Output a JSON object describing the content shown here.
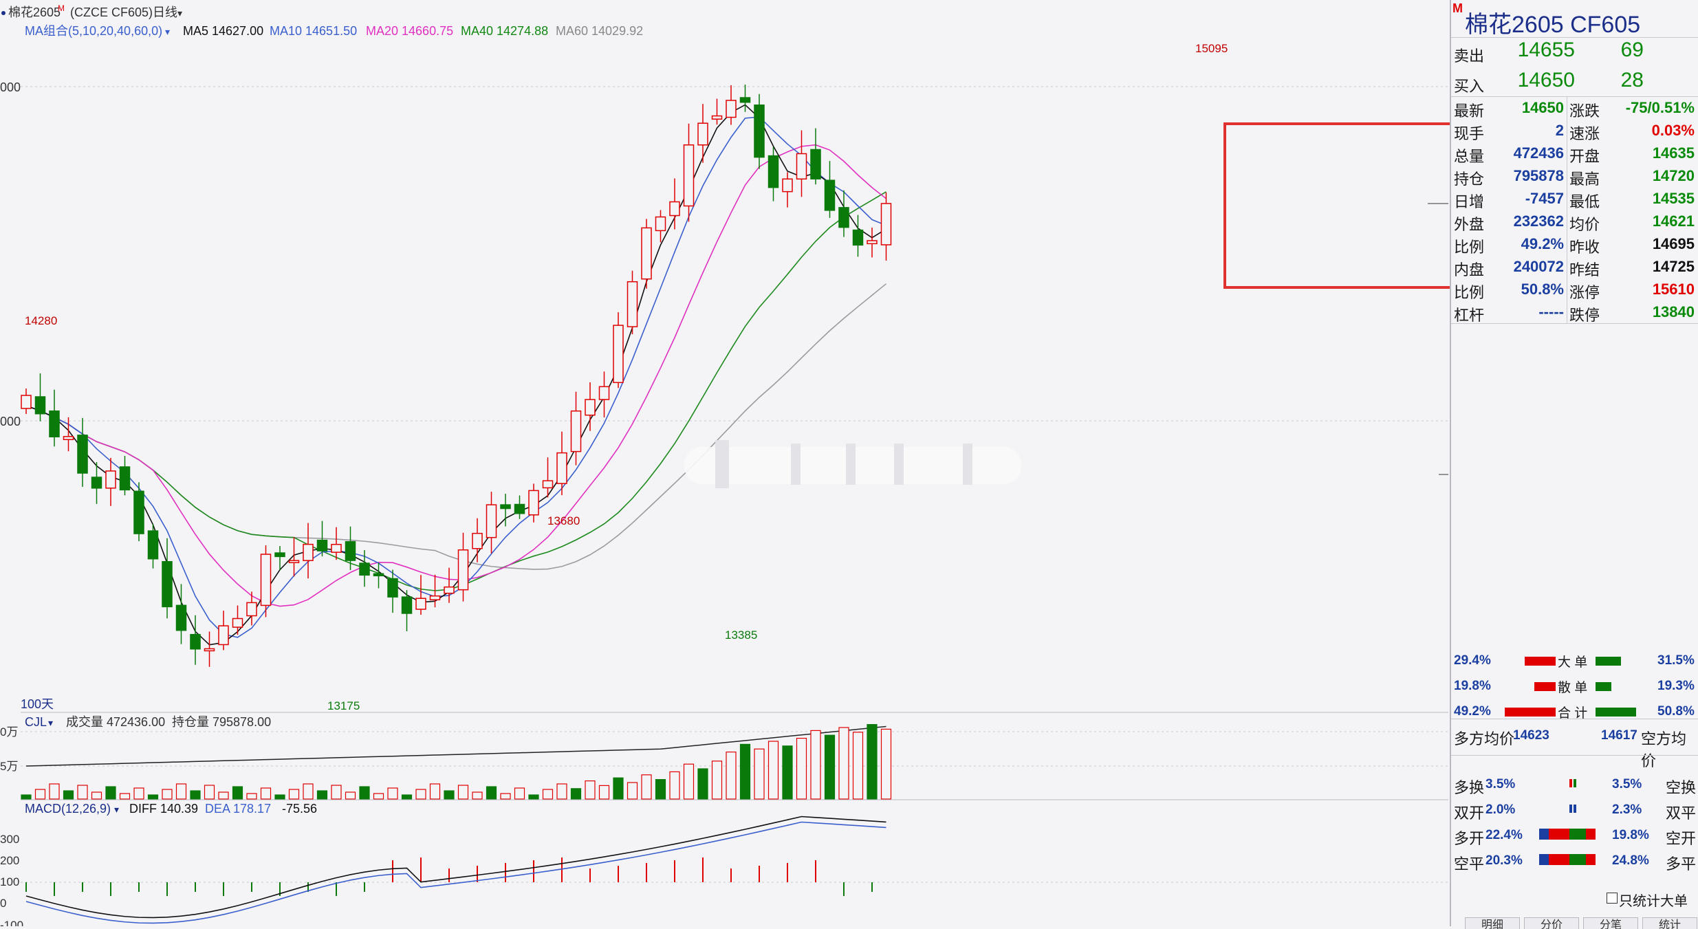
{
  "header": {
    "contract": "棉花2605",
    "contract_sup": "M",
    "exchange_code": "(CZCE CF605)",
    "period": "日线"
  },
  "ma_legend": {
    "group": "MA组合(5,10,20,40,60,0)",
    "items": [
      {
        "label": "MA5 14627.00",
        "color": "#111111"
      },
      {
        "label": "MA10 14651.50",
        "color": "#3a5fcd"
      },
      {
        "label": "MA20 14660.75",
        "color": "#e030c0"
      },
      {
        "label": "MA40 14274.88",
        "color": "#118811"
      },
      {
        "label": "MA60 14029.92",
        "color": "#888888"
      }
    ]
  },
  "price_axis_labels": [
    "000",
    "000"
  ],
  "annotations": {
    "high": "15095",
    "left_high": "14280",
    "mid_high": "13680",
    "mid_low": "13385",
    "low": "13175",
    "days": "100天"
  },
  "volume_panel": {
    "name": "CJL",
    "vol_label": "成交量 472436.00",
    "oi_label": "持仓量 795878.00",
    "axis": [
      "0万",
      "5万"
    ]
  },
  "macd_panel": {
    "name": "MACD(12,26,9)",
    "diff": "DIFF 140.39",
    "dea": "DEA 178.17",
    "macd": "-75.56",
    "axis": [
      "300",
      "200",
      "100",
      "0",
      "-100"
    ]
  },
  "quote": {
    "title_sup": "M",
    "title": "棉花2605  CF605",
    "ask_label": "卖出",
    "ask_price": "14655",
    "ask_vol": "69",
    "bid_label": "买入",
    "bid_price": "14650",
    "bid_vol": "28",
    "rows": [
      {
        "l1": "最新",
        "v1": "14650",
        "c1": "#0a8a0a",
        "l2": "涨跌",
        "v2": "-75/0.51%",
        "c2": "#0a8a0a"
      },
      {
        "l1": "现手",
        "v1": "2",
        "c1": "#1b3fa0",
        "l2": "速涨",
        "v2": "0.03%",
        "c2": "#e00000"
      },
      {
        "l1": "总量",
        "v1": "472436",
        "c1": "#1b3fa0",
        "l2": "开盘",
        "v2": "14635",
        "c2": "#0a8a0a"
      },
      {
        "l1": "持仓",
        "v1": "795878",
        "c1": "#1b3fa0",
        "l2": "最高",
        "v2": "14720",
        "c2": "#0a8a0a"
      },
      {
        "l1": "日增",
        "v1": "-7457",
        "c1": "#1b3fa0",
        "l2": "最低",
        "v2": "14535",
        "c2": "#0a8a0a"
      },
      {
        "l1": "外盘",
        "v1": "232362",
        "c1": "#1b3fa0",
        "l2": "均价",
        "v2": "14621",
        "c2": "#0a8a0a"
      },
      {
        "l1": "比例",
        "v1": "49.2%",
        "c1": "#1b3fa0",
        "l2": "昨收",
        "v2": "14695",
        "c2": "#111111"
      },
      {
        "l1": "内盘",
        "v1": "240072",
        "c1": "#1b3fa0",
        "l2": "昨结",
        "v2": "14725",
        "c2": "#111111"
      },
      {
        "l1": "比例",
        "v1": "50.8%",
        "c1": "#1b3fa0",
        "l2": "涨停",
        "v2": "15610",
        "c2": "#e00000"
      },
      {
        "l1": "杠杆",
        "v1": "-----",
        "c1": "#1b3fa0",
        "l2": "跌停",
        "v2": "13840",
        "c2": "#0a8a0a"
      }
    ],
    "flow": [
      {
        "left": "29.4%",
        "label": "大 单",
        "right": "31.5%",
        "red": 0.55,
        "green": 0.6
      },
      {
        "left": "19.8%",
        "label": "散 单",
        "right": "19.3%",
        "red": 0.38,
        "green": 0.37
      },
      {
        "left": "49.2%",
        "label": "合 计",
        "right": "50.8%",
        "red": 0.9,
        "green": 0.95
      }
    ],
    "avg_long_label": "多方均价",
    "avg_long": "14623",
    "avg_short_label": "空方均价",
    "avg_short": "14617",
    "positions": [
      {
        "l": "多换",
        "lv": "3.5%",
        "rv": "3.5%",
        "r": "空换"
      },
      {
        "l": "双开",
        "lv": "2.0%",
        "rv": "2.3%",
        "r": "双平"
      },
      {
        "l": "多开",
        "lv": "22.4%",
        "rv": "19.8%",
        "r": "空开"
      },
      {
        "l": "空平",
        "lv": "20.3%",
        "rv": "24.8%",
        "r": "多平"
      }
    ],
    "checkbox_label": "只统计大单",
    "bottom_tabs": [
      "明细",
      "分价",
      "分笔",
      "统计"
    ]
  },
  "colors": {
    "up": "#e00000",
    "down": "#0a7a0a",
    "highlight_box": "#e03030"
  }
}
